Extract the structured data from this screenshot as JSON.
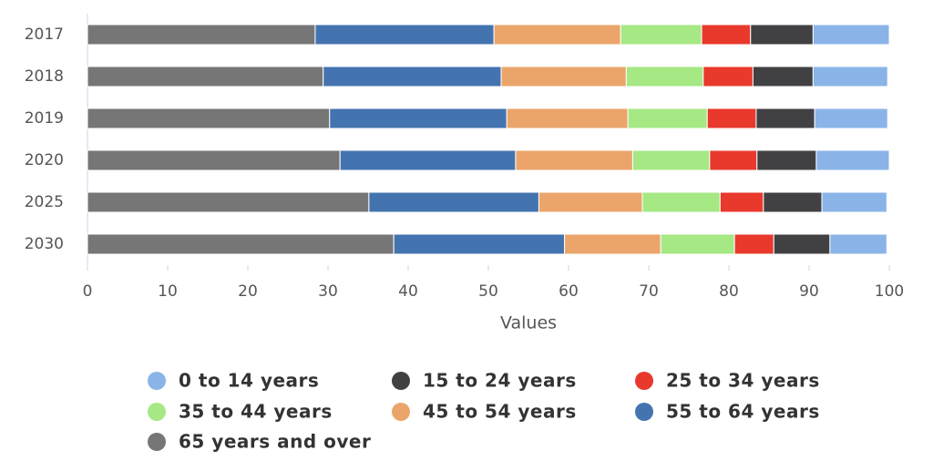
{
  "chart_data": {
    "type": "stacked-bar-horizontal",
    "x_label": "Values",
    "categories": [
      "2017",
      "2018",
      "2019",
      "2020",
      "2025",
      "2030"
    ],
    "series": [
      {
        "name": "0 to 14 years",
        "color": "#8ab4e8",
        "values": [
          9.5,
          9.3,
          9.1,
          9.1,
          8.1,
          7.1
        ]
      },
      {
        "name": "15 to 24 years",
        "color": "#414144",
        "values": [
          7.8,
          7.5,
          7.3,
          7.4,
          7.3,
          7.0
        ]
      },
      {
        "name": "25 to 34 years",
        "color": "#e8392c",
        "values": [
          6.1,
          6.2,
          6.1,
          5.9,
          5.4,
          4.9
        ]
      },
      {
        "name": "35 to 44 years",
        "color": "#a6e884",
        "values": [
          10.1,
          9.6,
          9.9,
          9.6,
          9.7,
          9.2
        ]
      },
      {
        "name": "45 to 54 years",
        "color": "#eba56a",
        "values": [
          15.8,
          15.6,
          15.1,
          14.6,
          12.9,
          12.0
        ]
      },
      {
        "name": "55 to 64 years",
        "color": "#4474b0",
        "values": [
          22.3,
          22.2,
          22.1,
          21.9,
          21.2,
          21.3
        ]
      },
      {
        "name": "65 years and over",
        "color": "#767676",
        "values": [
          28.4,
          29.4,
          30.2,
          31.5,
          35.1,
          38.2
        ]
      }
    ],
    "xlim": [
      0,
      100
    ],
    "xticks": [
      0,
      10,
      20,
      30,
      40,
      50,
      60,
      70,
      80,
      90,
      100
    ]
  }
}
